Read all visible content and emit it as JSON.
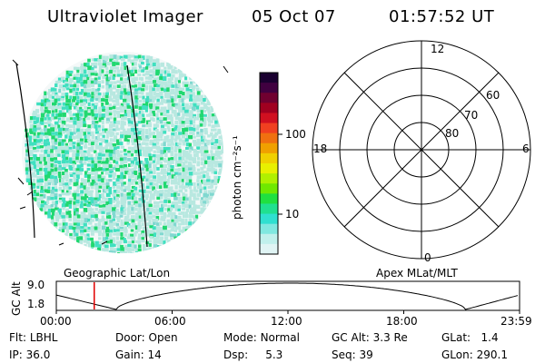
{
  "header": {
    "instrument": "Ultraviolet Imager",
    "date": "05 Oct 07",
    "time": "01:57:52 UT"
  },
  "colorbar": {
    "unit_label": "photon cm⁻²s⁻¹",
    "tick_labels": [
      "100",
      "10"
    ],
    "colors": [
      "#1a0030",
      "#400040",
      "#700030",
      "#a00020",
      "#d01020",
      "#f04020",
      "#f07010",
      "#f0a000",
      "#f0d000",
      "#e8f000",
      "#b0f000",
      "#70e800",
      "#20e040",
      "#20e090",
      "#30e0d0",
      "#80e8e0",
      "#c0f0ec",
      "#e0f4f4"
    ]
  },
  "polar_plot": {
    "mlt_labels": {
      "top": "12",
      "left": "18",
      "right": "6",
      "bottom": "0"
    },
    "lat_labels": [
      "60",
      "70",
      "80"
    ]
  },
  "image_panel": {
    "coord_label": "Geographic Lat/Lon",
    "right_coord_label": "Apex MLat/MLT"
  },
  "altitude_plot": {
    "ylabel": "GC Alt",
    "ytick_labels": [
      "9.0",
      "1.8"
    ],
    "xtick_labels": [
      "00:00",
      "06:00",
      "12:00",
      "18:00",
      "23:59"
    ],
    "current_time_marker_hours": 1.965
  },
  "status": {
    "row1": [
      {
        "label": "Flt:",
        "value": "LBHL"
      },
      {
        "label": "Door:",
        "value": "Open"
      },
      {
        "label": "Mode:",
        "value": "Normal"
      },
      {
        "label": "GC Alt:",
        "value": "3.3 Re"
      },
      {
        "label": "GLat:",
        "value": "1.4"
      }
    ],
    "row2": [
      {
        "label": "IP:",
        "value": "36.0"
      },
      {
        "label": "Gain:",
        "value": "14"
      },
      {
        "label": "Dsp:",
        "value": "5.3"
      },
      {
        "label": "Seq:",
        "value": "39"
      },
      {
        "label": "GLon:",
        "value": "290.1"
      }
    ]
  }
}
